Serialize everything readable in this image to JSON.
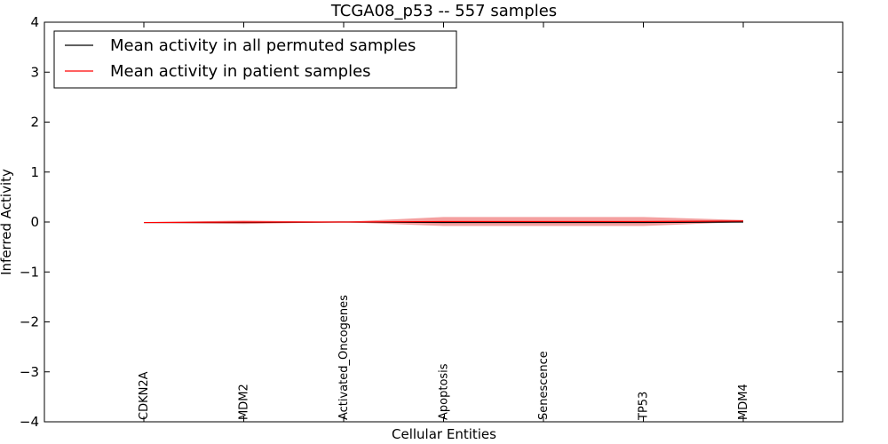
{
  "chart_data": {
    "type": "line",
    "title": "TCGA08_p53 -- 557 samples",
    "xlabel": "Cellular Entities",
    "ylabel": "Inferred Activity",
    "ylim": [
      -4,
      4
    ],
    "yticks": [
      4,
      3,
      2,
      1,
      0,
      -1,
      -2,
      -3,
      -4
    ],
    "ytick_labels": [
      "4",
      "3",
      "2",
      "1",
      "0",
      "−1",
      "−2",
      "−3",
      "−4"
    ],
    "categories": [
      "CDKN2A",
      "MDM2",
      "Activated_Oncogenes",
      "Apoptosis",
      "Senescence",
      "TP53",
      "MDM4"
    ],
    "series": [
      {
        "name": "Mean activity in all permuted samples",
        "color": "#000000",
        "values": [
          -0.01,
          -0.01,
          0.0,
          -0.01,
          -0.01,
          -0.01,
          0.0
        ]
      },
      {
        "name": "Mean activity in patient samples",
        "color": "#ff0000",
        "values": [
          -0.01,
          0.0,
          0.0,
          0.01,
          0.01,
          0.01,
          0.02
        ],
        "band_upper": [
          -0.005,
          0.03,
          0.005,
          0.1,
          0.1,
          0.1,
          0.04
        ],
        "band_lower": [
          -0.02,
          -0.04,
          -0.005,
          -0.08,
          -0.08,
          -0.08,
          0.0
        ],
        "band_color": "#f08080"
      }
    ],
    "legend_position": "top-left"
  }
}
